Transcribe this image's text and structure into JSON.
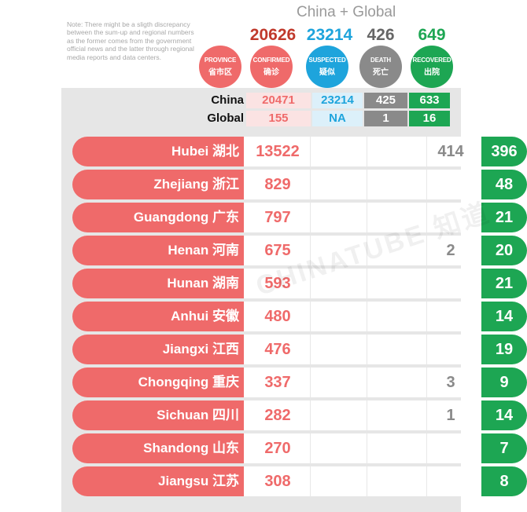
{
  "note": "Note: There might be a sligth discrepancy between the sum-up and regional numbers as the former comes from the government official news and the latter through regional media reports and data centers.",
  "header": {
    "title": "China + Global"
  },
  "totals": {
    "confirmed": "20626",
    "suspected": "23214",
    "death": "426",
    "recovered": "649"
  },
  "columns": {
    "province": {
      "en": "PROVINCE",
      "cn": "省市区"
    },
    "confirmed": {
      "en": "CONFIRMED",
      "cn": "确诊"
    },
    "suspected": {
      "en": "SUSPECTED",
      "cn": "疑似"
    },
    "death": {
      "en": "DEATH",
      "cn": "死亡"
    },
    "recovered": {
      "en": "RECOVERED",
      "cn": "出院"
    }
  },
  "colors": {
    "province": "#ef6a6a",
    "confirmed": "#ef6a6a",
    "suspected": "#1ea4dc",
    "death": "#8a8a8a",
    "recovered": "#1da653",
    "confirmed_total": "#c0392b"
  },
  "summary": {
    "china": {
      "label": "China",
      "confirmed": "20471",
      "suspected": "23214",
      "death": "425",
      "recovered": "633"
    },
    "global": {
      "label": "Global",
      "confirmed": "155",
      "suspected": "NA",
      "death": "1",
      "recovered": "16"
    }
  },
  "provinces": [
    {
      "name": "Hubei 湖北",
      "confirmed": "13522",
      "death": "414",
      "recovered": "396"
    },
    {
      "name": "Zhejiang 浙江",
      "confirmed": "829",
      "death": "",
      "recovered": "48"
    },
    {
      "name": "Guangdong 广东",
      "confirmed": "797",
      "death": "",
      "recovered": "21"
    },
    {
      "name": "Henan 河南",
      "confirmed": "675",
      "death": "2",
      "recovered": "20"
    },
    {
      "name": "Hunan 湖南",
      "confirmed": "593",
      "death": "",
      "recovered": "21"
    },
    {
      "name": "Anhui 安徽",
      "confirmed": "480",
      "death": "",
      "recovered": "14"
    },
    {
      "name": "Jiangxi 江西",
      "confirmed": "476",
      "death": "",
      "recovered": "19"
    },
    {
      "name": "Chongqing 重庆",
      "confirmed": "337",
      "death": "3",
      "recovered": "9"
    },
    {
      "name": "Sichuan 四川",
      "confirmed": "282",
      "death": "1",
      "recovered": "14"
    },
    {
      "name": "Shandong 山东",
      "confirmed": "270",
      "death": "",
      "recovered": "7"
    },
    {
      "name": "Jiangsu 江苏",
      "confirmed": "308",
      "death": "",
      "recovered": "8"
    }
  ],
  "watermark": "CHINATUBE 知道"
}
